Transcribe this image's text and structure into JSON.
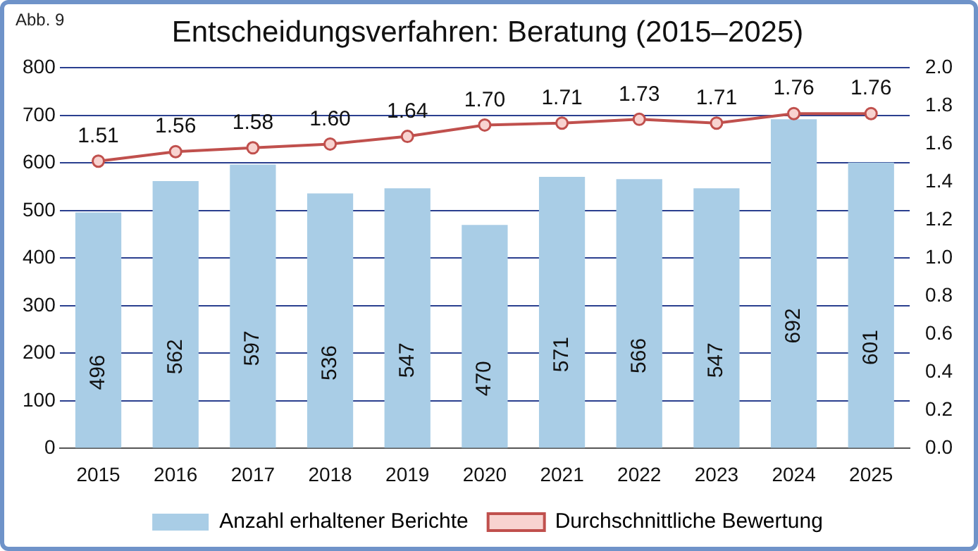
{
  "chart_data": {
    "type": "bar",
    "title": "Entscheidungsverfahren: Beratung (2015–2025)",
    "annotations": [
      "Abb. 9"
    ],
    "categories": [
      "2015",
      "2016",
      "2017",
      "2018",
      "2019",
      "2020",
      "2021",
      "2022",
      "2023",
      "2024",
      "2025"
    ],
    "series": [
      {
        "name": "Anzahl erhaltener Berichte",
        "color": "#a9cde6",
        "values": [
          496,
          562,
          597,
          536,
          547,
          470,
          571,
          566,
          547,
          692,
          601
        ]
      },
      {
        "name": "Durchschnittliche Bewertung",
        "type": "line",
        "axis": "y2",
        "color": "#c0504d",
        "values": [
          1.51,
          1.56,
          1.58,
          1.6,
          1.64,
          1.7,
          1.71,
          1.73,
          1.71,
          1.76,
          1.76
        ],
        "value_labels": [
          "1.51",
          "1.56",
          "1.58",
          "1.60",
          "1.64",
          "1.70",
          "1.71",
          "1.73",
          "1.71",
          "1.76",
          "1.76"
        ]
      }
    ],
    "ylim": [
      0,
      800
    ],
    "yticks": [
      0,
      100,
      200,
      300,
      400,
      500,
      600,
      700,
      800
    ],
    "y2lim": [
      0,
      2
    ],
    "y2ticks": [
      {
        "value": 0,
        "label": "0.0"
      },
      0.2,
      0.4,
      0.6,
      0.8,
      {
        "value": 1,
        "label": "1.0"
      },
      1.2,
      1.4,
      1.6,
      1.8,
      {
        "value": 2,
        "label": "2.0"
      }
    ],
    "grid": "y",
    "legend": "bottom",
    "marker": "circle",
    "data_labels": true
  }
}
